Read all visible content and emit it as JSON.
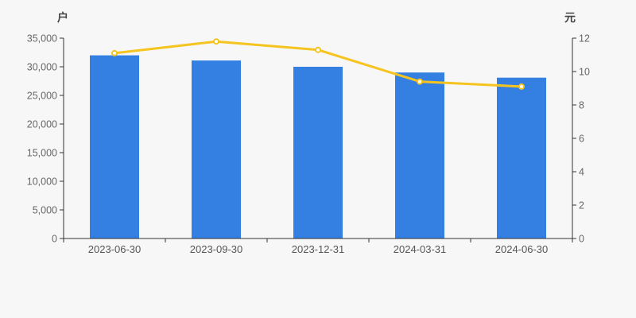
{
  "page": {
    "background_color": "#f7f7f8"
  },
  "chart_data": {
    "type": "bar",
    "combo": "bar-line-dual-axis",
    "title": "",
    "legend": "none",
    "grid": false,
    "categories": [
      "2023-06-30",
      "2023-09-30",
      "2023-12-31",
      "2024-03-31",
      "2024-06-30"
    ],
    "series": [
      {
        "id": "bar-series",
        "type": "bar",
        "yaxis": "left",
        "color": "#3480e2",
        "values": [
          32000,
          31100,
          30000,
          29000,
          28100
        ]
      },
      {
        "id": "line-series",
        "type": "line",
        "yaxis": "right",
        "color": "#f6c41e",
        "marker": "hollow-circle",
        "marker_fill": "#ffffff",
        "values": [
          11.1,
          11.8,
          11.3,
          9.4,
          9.1
        ]
      }
    ],
    "left_axis": {
      "name": "户",
      "min": 0,
      "max": 35000,
      "step": 5000,
      "tick_labels": [
        "0",
        "5,000",
        "10,000",
        "15,000",
        "20,000",
        "25,000",
        "30,000",
        "35,000"
      ]
    },
    "right_axis": {
      "name": "元",
      "min": 0,
      "max": 12,
      "step": 2,
      "tick_labels": [
        "0",
        "2",
        "4",
        "6",
        "8",
        "10",
        "12"
      ]
    },
    "colors": {
      "axis_line": "#333333",
      "tick_text": "#666666",
      "axis_title": "#444444"
    }
  }
}
